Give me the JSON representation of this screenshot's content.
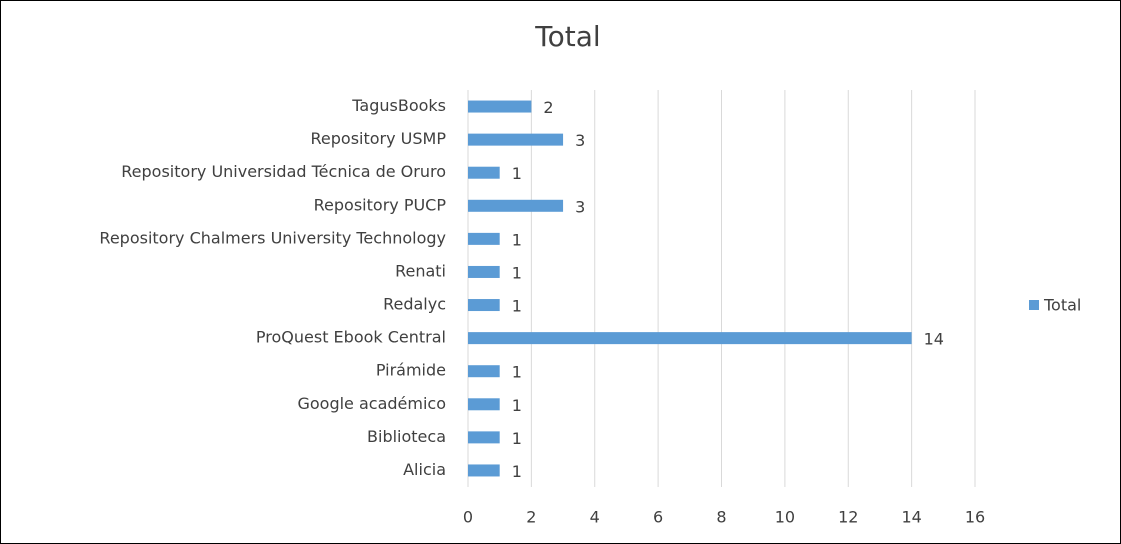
{
  "chart_data": {
    "type": "hbar",
    "title": "Total",
    "categories": [
      "TagusBooks",
      "Repository USMP",
      "Repository Universidad Técnica de Oruro",
      "Repository PUCP",
      "Repository Chalmers University Technology",
      "Renati",
      "Redalyc",
      "ProQuest Ebook Central",
      "Pirámide",
      "Google académico",
      "Biblioteca",
      "Alicia"
    ],
    "series": [
      {
        "name": "Total",
        "color": "#5b9bd5",
        "values": [
          2,
          3,
          1,
          3,
          1,
          1,
          1,
          14,
          1,
          1,
          1,
          1
        ]
      }
    ],
    "xlim": [
      0,
      16
    ],
    "xticks": [
      0,
      2,
      4,
      6,
      8,
      10,
      12,
      14,
      16
    ],
    "grid": true,
    "legend": "right"
  }
}
